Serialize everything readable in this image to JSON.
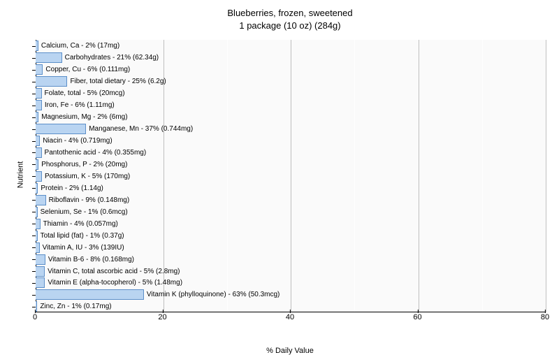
{
  "chart": {
    "type": "bar-horizontal",
    "title_line1": "Blueberries, frozen, sweetened",
    "title_line2": "1 package (10 oz) (284g)",
    "title_fontsize": 13,
    "xlabel": "% Daily Value",
    "ylabel": "Nutrient",
    "label_fontsize": 11,
    "xlim": [
      0,
      80
    ],
    "xtick_step": 20,
    "xticks": [
      0,
      20,
      40,
      60,
      80
    ],
    "background_color": "#fafafa",
    "bar_color": "#b9d4f1",
    "bar_border_color": "#5c8fc9",
    "grid_color_major": "#bfbfbf",
    "grid_color_minor": "#ffffff",
    "bar_label_fontsize": 10,
    "bars": [
      {
        "label": "Calcium, Ca - 2% (17mg)",
        "value": 2
      },
      {
        "label": "Carbohydrates - 21% (62.34g)",
        "value": 21
      },
      {
        "label": "Copper, Cu - 6% (0.111mg)",
        "value": 6
      },
      {
        "label": "Fiber, total dietary - 25% (6.2g)",
        "value": 25
      },
      {
        "label": "Folate, total - 5% (20mcg)",
        "value": 5
      },
      {
        "label": "Iron, Fe - 6% (1.11mg)",
        "value": 6
      },
      {
        "label": "Magnesium, Mg - 2% (6mg)",
        "value": 2
      },
      {
        "label": "Manganese, Mn - 37% (0.744mg)",
        "value": 37
      },
      {
        "label": "Niacin - 4% (0.719mg)",
        "value": 4
      },
      {
        "label": "Pantothenic acid - 4% (0.355mg)",
        "value": 4
      },
      {
        "label": "Phosphorus, P - 2% (20mg)",
        "value": 2
      },
      {
        "label": "Potassium, K - 5% (170mg)",
        "value": 5
      },
      {
        "label": "Protein - 2% (1.14g)",
        "value": 2
      },
      {
        "label": "Riboflavin - 9% (0.148mg)",
        "value": 9
      },
      {
        "label": "Selenium, Se - 1% (0.6mcg)",
        "value": 1
      },
      {
        "label": "Thiamin - 4% (0.057mg)",
        "value": 4
      },
      {
        "label": "Total lipid (fat) - 1% (0.37g)",
        "value": 1
      },
      {
        "label": "Vitamin A, IU - 3% (139IU)",
        "value": 3
      },
      {
        "label": "Vitamin B-6 - 8% (0.168mg)",
        "value": 8
      },
      {
        "label": "Vitamin C, total ascorbic acid - 5% (2.8mg)",
        "value": 5
      },
      {
        "label": "Vitamin E (alpha-tocopherol) - 5% (1.48mg)",
        "value": 5
      },
      {
        "label": "Vitamin K (phylloquinone) - 63% (50.3mcg)",
        "value": 63
      },
      {
        "label": "Zinc, Zn - 1% (0.17mg)",
        "value": 1
      }
    ]
  }
}
